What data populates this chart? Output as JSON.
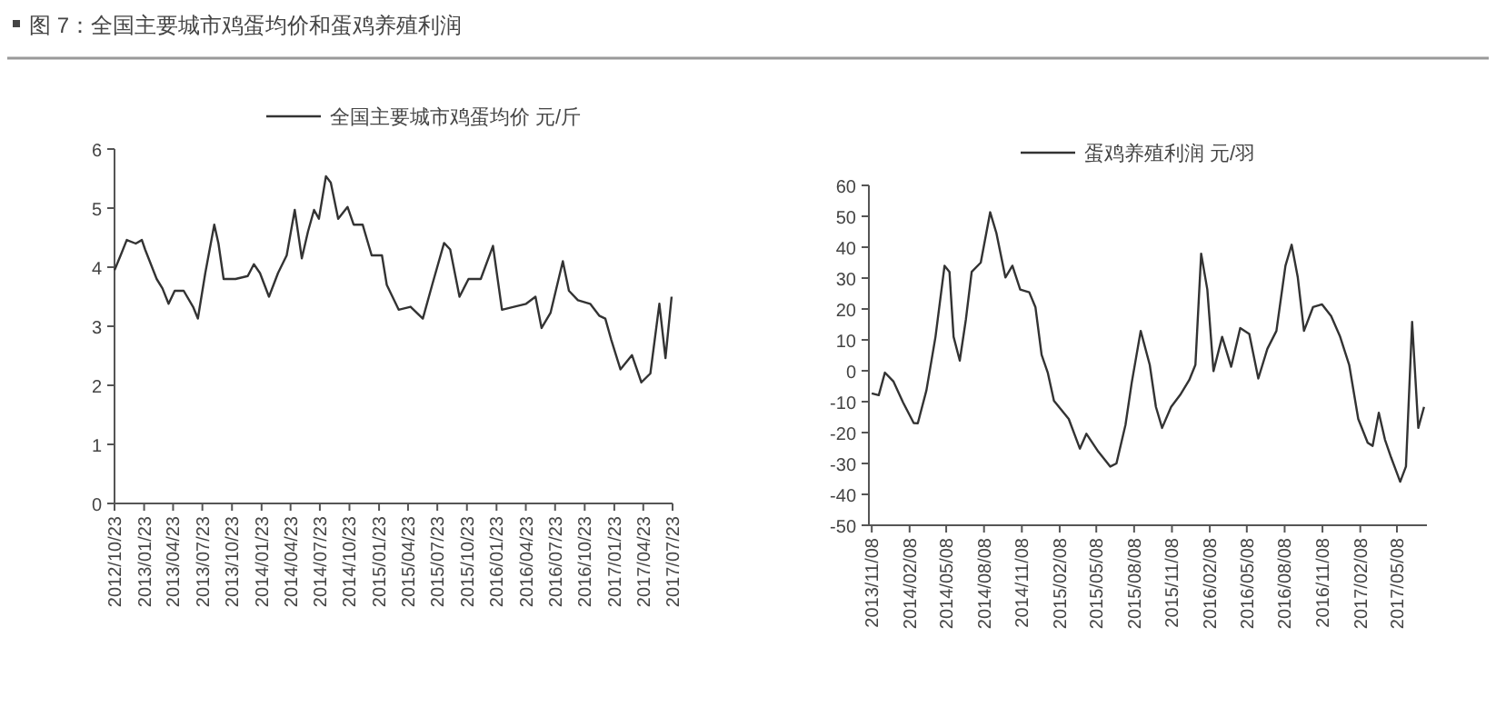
{
  "chart_data": [
    {
      "type": "line",
      "title": "图 7：全国主要城市鸡蛋均价和蛋鸡养殖利润",
      "legend": "top",
      "xlim": [
        "2012-10-23",
        "2017-07-23"
      ],
      "ylim": [
        0,
        6
      ],
      "yticks": [
        0,
        1,
        2,
        3,
        4,
        5,
        6
      ],
      "xticks": [
        {
          "value": "2012-10-23",
          "label": "2012/10/23"
        },
        {
          "value": "2013-01-23",
          "label": "2013/01/23"
        },
        {
          "value": "2013-04-23",
          "label": "2013/04/23"
        },
        {
          "value": "2013-07-23",
          "label": "2013/07/23"
        },
        {
          "value": "2013-10-23",
          "label": "2013/10/23"
        },
        {
          "value": "2014-01-23",
          "label": "2014/01/23"
        },
        {
          "value": "2014-04-23",
          "label": "2014/04/23"
        },
        {
          "value": "2014-07-23",
          "label": "2014/07/23"
        },
        {
          "value": "2014-10-23",
          "label": "2014/10/23"
        },
        {
          "value": "2015-01-23",
          "label": "2015/01/23"
        },
        {
          "value": "2015-04-23",
          "label": "2015/04/23"
        },
        {
          "value": "2015-07-23",
          "label": "2015/07/23"
        },
        {
          "value": "2015-10-23",
          "label": "2015/10/23"
        },
        {
          "value": "2016-01-23",
          "label": "2016/01/23"
        },
        {
          "value": "2016-04-23",
          "label": "2016/04/23"
        },
        {
          "value": "2016-07-23",
          "label": "2016/07/23"
        },
        {
          "value": "2016-10-23",
          "label": "2016/10/23"
        },
        {
          "value": "2017-01-23",
          "label": "2017/01/23"
        },
        {
          "value": "2017-04-23",
          "label": "2017/04/23"
        },
        {
          "value": "2017-07-23",
          "label": "2017/07/23"
        }
      ],
      "series": [
        {
          "name": "全国主要城市鸡蛋均价  元/斤",
          "color": "#333333",
          "x": [
            "2012-10-23",
            "2012-11-11",
            "2012-11-30",
            "2012-12-28",
            "2013-01-16",
            "2013-01-26",
            "2013-03-03",
            "2013-03-21",
            "2013-04-09",
            "2013-04-28",
            "2013-05-26",
            "2013-06-24",
            "2013-07-09",
            "2013-08-01",
            "2013-08-29",
            "2013-09-11",
            "2013-09-27",
            "2013-11-03",
            "2013-12-11",
            "2013-12-30",
            "2014-01-18",
            "2014-02-15",
            "2014-03-15",
            "2014-04-11",
            "2014-05-06",
            "2014-05-28",
            "2014-06-16",
            "2014-07-05",
            "2014-07-20",
            "2014-08-11",
            "2014-08-26",
            "2014-09-18",
            "2014-10-17",
            "2014-11-05",
            "2014-12-03",
            "2014-12-31",
            "2015-02-01",
            "2015-02-16",
            "2015-03-25",
            "2015-05-01",
            "2015-06-08",
            "2015-07-07",
            "2015-08-13",
            "2015-09-01",
            "2015-09-30",
            "2015-10-28",
            "2015-12-05",
            "2016-01-12",
            "2016-02-09",
            "2016-03-17",
            "2016-04-24",
            "2016-05-23",
            "2016-06-11",
            "2016-07-09",
            "2016-08-16",
            "2016-09-04",
            "2016-10-02",
            "2016-11-09",
            "2016-12-07",
            "2016-12-26",
            "2017-01-13",
            "2017-02-11",
            "2017-03-19",
            "2017-04-17",
            "2017-05-15",
            "2017-06-12",
            "2017-07-01",
            "2017-07-20"
          ],
          "values": [
            3.95,
            4.2,
            4.46,
            4.4,
            4.46,
            4.3,
            3.8,
            3.64,
            3.38,
            3.6,
            3.6,
            3.33,
            3.13,
            3.9,
            4.72,
            4.4,
            3.8,
            3.8,
            3.85,
            4.05,
            3.9,
            3.5,
            3.9,
            4.2,
            4.97,
            4.15,
            4.6,
            4.97,
            4.82,
            5.54,
            5.43,
            4.82,
            5.02,
            4.72,
            4.72,
            4.2,
            4.2,
            3.7,
            3.28,
            3.33,
            3.13,
            3.7,
            4.41,
            4.3,
            3.5,
            3.8,
            3.8,
            4.36,
            3.28,
            3.33,
            3.38,
            3.5,
            2.97,
            3.23,
            4.1,
            3.6,
            3.44,
            3.38,
            3.18,
            3.13,
            2.78,
            2.27,
            2.51,
            2.05,
            2.2,
            3.38,
            2.46,
            3.5
          ]
        }
      ]
    },
    {
      "type": "line",
      "legend": "top",
      "xlim": [
        "2013-11-01",
        "2017-07-20"
      ],
      "ylim": [
        -50,
        60
      ],
      "yticks": [
        -50,
        -40,
        -30,
        -20,
        -10,
        0,
        10,
        20,
        30,
        40,
        50,
        60
      ],
      "xticks": [
        {
          "value": "2013-11-08",
          "label": "2013/11/08"
        },
        {
          "value": "2014-02-08",
          "label": "2014/02/08"
        },
        {
          "value": "2014-05-08",
          "label": "2014/05/08"
        },
        {
          "value": "2014-08-08",
          "label": "2014/08/08"
        },
        {
          "value": "2014-11-08",
          "label": "2014/11/08"
        },
        {
          "value": "2015-02-08",
          "label": "2015/02/08"
        },
        {
          "value": "2015-05-08",
          "label": "2015/05/08"
        },
        {
          "value": "2015-08-08",
          "label": "2015/08/08"
        },
        {
          "value": "2015-11-08",
          "label": "2015/11/08"
        },
        {
          "value": "2016-02-08",
          "label": "2016/02/08"
        },
        {
          "value": "2016-05-08",
          "label": "2016/05/08"
        },
        {
          "value": "2016-08-08",
          "label": "2016/08/08"
        },
        {
          "value": "2016-11-08",
          "label": "2016/11/08"
        },
        {
          "value": "2017-02-08",
          "label": "2017/02/08"
        },
        {
          "value": "2017-05-08",
          "label": "2017/05/08"
        }
      ],
      "series": [
        {
          "name": "蛋鸡养殖利润  元/羽",
          "color": "#333333",
          "x": [
            "2013-11-08",
            "2013-11-25",
            "2013-12-10",
            "2013-12-31",
            "2014-01-23",
            "2014-02-18",
            "2014-02-28",
            "2014-03-21",
            "2014-04-12",
            "2014-05-04",
            "2014-05-16",
            "2014-05-26",
            "2014-06-10",
            "2014-06-25",
            "2014-07-09",
            "2014-07-31",
            "2014-08-23",
            "2014-09-07",
            "2014-09-29",
            "2014-10-16",
            "2014-11-04",
            "2014-11-26",
            "2014-12-11",
            "2014-12-26",
            "2015-01-10",
            "2015-01-25",
            "2015-03-02",
            "2015-03-29",
            "2015-04-14",
            "2015-05-13",
            "2015-06-11",
            "2015-06-26",
            "2015-07-18",
            "2015-08-02",
            "2015-08-24",
            "2015-09-15",
            "2015-09-30",
            "2015-10-15",
            "2015-11-06",
            "2015-11-28",
            "2015-12-20",
            "2016-01-04",
            "2016-01-18",
            "2016-02-02",
            "2016-02-17",
            "2016-03-09",
            "2016-03-31",
            "2016-04-22",
            "2016-05-14",
            "2016-06-05",
            "2016-06-27",
            "2016-07-19",
            "2016-08-10",
            "2016-08-25",
            "2016-09-09",
            "2016-09-24",
            "2016-10-16",
            "2016-11-07",
            "2016-11-29",
            "2016-12-21",
            "2017-01-12",
            "2017-02-03",
            "2017-02-26",
            "2017-03-10",
            "2017-03-25",
            "2017-04-09",
            "2017-04-24",
            "2017-05-16",
            "2017-05-30",
            "2017-06-14",
            "2017-06-29",
            "2017-07-13"
          ],
          "values": [
            -7.3,
            -7.9,
            -0.6,
            -3.5,
            -10.2,
            -16.9,
            -17,
            -6.3,
            11,
            34,
            32,
            11,
            3.3,
            16.7,
            32,
            35,
            51.3,
            44.6,
            30.2,
            34,
            26.3,
            25.4,
            20.6,
            5.2,
            -0.6,
            -9.7,
            -15.6,
            -25.2,
            -20.4,
            -26.2,
            -31,
            -30,
            -17.5,
            -4,
            12.9,
            1.9,
            -11.7,
            -18.5,
            -11.7,
            -7.8,
            -3,
            1.9,
            37.9,
            26.3,
            -0.1,
            11,
            1.3,
            13.8,
            11.9,
            -2.5,
            7.1,
            12.9,
            34,
            40.8,
            30.2,
            12.9,
            20.6,
            21.5,
            17.7,
            11,
            1.9,
            -15.6,
            -23.3,
            -24.3,
            -13.6,
            -22.3,
            -28.1,
            -35.9,
            -31,
            15.8,
            -18.5,
            -11.7
          ]
        }
      ]
    }
  ]
}
